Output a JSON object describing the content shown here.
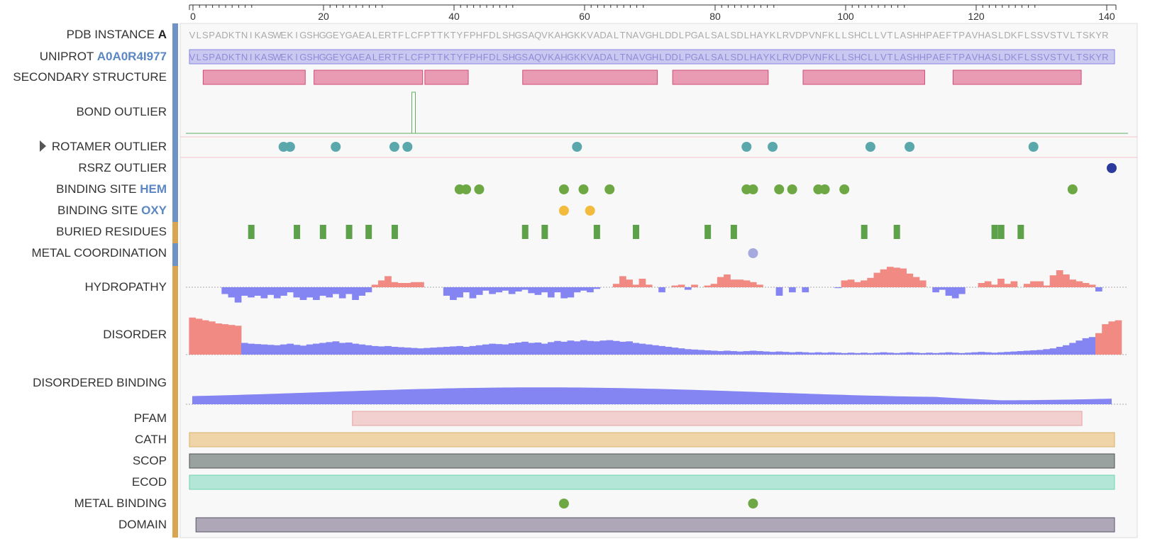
{
  "sequence": "VLSPADKTNIKASWEKIGSHGGEYGAEALERTFLCFPTTKTYFPHFDLSHGSAQVKAHGKKVADALTNAVGHLDDLPGALSALSDLHAYKLRVDPVNFKLLSHCLLVTLASHHPAEFTPAVHASLDKFLSSVSTVLTSKYR",
  "axis": {
    "ticks": [
      "0",
      "20",
      "40",
      "60",
      "80",
      "100",
      "120",
      "140"
    ]
  },
  "tracks": [
    {
      "key": "pdb",
      "prefix": "PDB INSTANCE ",
      "highlight": "A",
      "hl_color": "#222222",
      "type": "sequence"
    },
    {
      "key": "uniprot",
      "prefix": "UNIPROT ",
      "highlight": "A0A0R4I977",
      "hl_color": "#5b87c2",
      "type": "sequence-bar"
    },
    {
      "key": "ss",
      "prefix": "SECONDARY STRUCTURE",
      "type": "helices"
    },
    {
      "key": "bond",
      "prefix": "BOND OUTLIER",
      "type": "bond"
    },
    {
      "key": "rotamer",
      "prefix": "ROTAMER OUTLIER",
      "type": "points",
      "expandable": true
    },
    {
      "key": "rsrz",
      "prefix": "RSRZ OUTLIER",
      "type": "points"
    },
    {
      "key": "hem",
      "prefix": "BINDING SITE ",
      "highlight": "HEM",
      "hl_color": "#5b87c2",
      "type": "points"
    },
    {
      "key": "oxy",
      "prefix": "BINDING SITE ",
      "highlight": "OXY",
      "hl_color": "#5b87c2",
      "type": "points"
    },
    {
      "key": "buried",
      "prefix": "BURIED RESIDUES",
      "type": "ticks"
    },
    {
      "key": "metalcoord",
      "prefix": "METAL COORDINATION",
      "type": "points"
    },
    {
      "key": "hydro",
      "prefix": "HYDROPATHY",
      "type": "hydropathy"
    },
    {
      "key": "disorder",
      "prefix": "DISORDER",
      "type": "disorder"
    },
    {
      "key": "disbind",
      "prefix": "DISORDERED BINDING",
      "type": "area"
    },
    {
      "key": "pfam",
      "prefix": "PFAM",
      "type": "range"
    },
    {
      "key": "cath",
      "prefix": "CATH",
      "type": "range"
    },
    {
      "key": "scop",
      "prefix": "SCOP",
      "type": "range"
    },
    {
      "key": "ecod",
      "prefix": "ECOD",
      "type": "range"
    },
    {
      "key": "metalbind",
      "prefix": "METAL BINDING",
      "type": "points"
    },
    {
      "key": "domain",
      "prefix": "DOMAIN",
      "type": "range"
    }
  ],
  "features": {
    "helices": [
      [
        3,
        18
      ],
      [
        20,
        36
      ],
      [
        37,
        43
      ],
      [
        52,
        72
      ],
      [
        75,
        89
      ],
      [
        95,
        113
      ],
      [
        118,
        137
      ]
    ],
    "bond_outlier": [
      35
    ],
    "rotamer": [
      15,
      16,
      23,
      32,
      34,
      60,
      86,
      90,
      105,
      111,
      130
    ],
    "rsrz": [
      142
    ],
    "hem": [
      42,
      43,
      45,
      58,
      61,
      65,
      86,
      87,
      91,
      93,
      97,
      98,
      101,
      136
    ],
    "oxy": [
      58,
      62
    ],
    "buried": [
      10,
      17,
      21,
      25,
      28,
      32,
      52,
      55,
      63,
      69,
      80,
      84,
      104,
      109,
      124,
      125,
      128
    ],
    "metal_coordination": [
      87
    ],
    "metal_binding": [
      58,
      87
    ],
    "pfam": [
      26,
      137
    ],
    "cath": [
      1,
      142
    ],
    "scop": [
      1,
      142
    ],
    "ecod": [
      1,
      142
    ],
    "domain": [
      2,
      142
    ]
  },
  "hydropathy": [
    0,
    0,
    0,
    0,
    0,
    -0.8,
    -1.2,
    -1.8,
    -1.0,
    -1.2,
    -1.0,
    -1.3,
    -0.9,
    -1.3,
    -1.0,
    -0.6,
    -1.2,
    -1.5,
    -1.2,
    -1.5,
    -1.0,
    -1.2,
    -0.8,
    -1.3,
    -0.8,
    -1.5,
    -1.0,
    -0.6,
    0.3,
    0.8,
    1.3,
    0.6,
    0.5,
    0.5,
    0.6,
    0.6,
    0,
    0,
    0,
    -1.0,
    -1.5,
    -1.2,
    -0.6,
    -1.3,
    -0.9,
    -0.4,
    -0.8,
    -0.6,
    -0.4,
    -0.8,
    -0.5,
    -0.3,
    -0.7,
    -0.9,
    -0.6,
    -1.2,
    -0.6,
    -1.3,
    -1.2,
    -0.6,
    -0.4,
    -0.6,
    -0.2,
    0,
    0,
    0.4,
    1.3,
    0.9,
    0.3,
    1.0,
    0.3,
    0,
    -0.6,
    0,
    0.2,
    0.3,
    -0.3,
    0.3,
    0,
    0.2,
    0.4,
    1.2,
    1.5,
    0.9,
    0.9,
    0.8,
    0.6,
    0.3,
    0,
    0,
    -1.0,
    0,
    -0.6,
    0,
    -0.6,
    0,
    0,
    0,
    0,
    -0.1,
    0.8,
    0.9,
    0.6,
    0.8,
    1.1,
    1.7,
    2.1,
    2.4,
    2.3,
    2.2,
    1.6,
    1.2,
    0.8,
    0,
    -0.6,
    -0.3,
    -1.0,
    -1.3,
    -0.8,
    0,
    0,
    0.5,
    0.7,
    0.3,
    1.0,
    0.4,
    0.7,
    0,
    0.4,
    0.7,
    0.7,
    0.2,
    1.4,
    2.0,
    1.5,
    0.9,
    0.7,
    0.5,
    0.3,
    -0.5,
    0
  ],
  "disorder": [
    0.95,
    0.92,
    0.88,
    0.85,
    0.8,
    0.78,
    0.76,
    0.74,
    0.3,
    0.28,
    0.27,
    0.26,
    0.25,
    0.24,
    0.26,
    0.28,
    0.25,
    0.23,
    0.26,
    0.28,
    0.3,
    0.32,
    0.34,
    0.3,
    0.31,
    0.28,
    0.26,
    0.24,
    0.22,
    0.21,
    0.22,
    0.2,
    0.19,
    0.18,
    0.17,
    0.16,
    0.17,
    0.18,
    0.19,
    0.2,
    0.21,
    0.22,
    0.2,
    0.22,
    0.24,
    0.26,
    0.28,
    0.27,
    0.26,
    0.29,
    0.31,
    0.33,
    0.3,
    0.31,
    0.28,
    0.32,
    0.35,
    0.33,
    0.36,
    0.34,
    0.37,
    0.35,
    0.34,
    0.36,
    0.37,
    0.35,
    0.33,
    0.34,
    0.3,
    0.28,
    0.26,
    0.24,
    0.22,
    0.2,
    0.18,
    0.16,
    0.14,
    0.13,
    0.12,
    0.11,
    0.1,
    0.09,
    0.1,
    0.09,
    0.08,
    0.09,
    0.1,
    0.09,
    0.08,
    0.07,
    0.08,
    0.07,
    0.06,
    0.07,
    0.06,
    0.05,
    0.06,
    0.05,
    0.06,
    0.05,
    0.04,
    0.05,
    0.04,
    0.05,
    0.04,
    0.05,
    0.06,
    0.05,
    0.04,
    0.05,
    0.06,
    0.05,
    0.04,
    0.05,
    0.04,
    0.05,
    0.06,
    0.05,
    0.04,
    0.05,
    0.06,
    0.07,
    0.06,
    0.05,
    0.06,
    0.07,
    0.08,
    0.09,
    0.1,
    0.11,
    0.12,
    0.14,
    0.16,
    0.2,
    0.24,
    0.3,
    0.36,
    0.42,
    0.45,
    0.55,
    0.78,
    0.85,
    0.88
  ],
  "colors": {
    "helix_fill": "#e99bb4",
    "helix_stroke": "#d04a77",
    "rotamer": "#5aa8ac",
    "rsrz": "#2b3a9c",
    "hem": "#6ea845",
    "oxy": "#f2bb3e",
    "buried": "#5da14a",
    "metal_coord": "#a6a9de",
    "metal_bind": "#6ea845",
    "hydro_pos": "#f08a83",
    "hydro_neg": "#8484f2",
    "disorder_pos": "#f08a83",
    "disorder_neg": "#8484f2",
    "disbind": "#8484f2",
    "pfam_fill": "#f2d0d0",
    "pfam_stroke": "#e6a2a2",
    "cath_fill": "#efd4a8",
    "cath_stroke": "#dcae69",
    "scop_fill": "#9aa2a0",
    "scop_stroke": "#4f5652",
    "ecod_fill": "#b3e6d6",
    "ecod_stroke": "#6fd4b3",
    "domain_fill": "#aea7b8",
    "domain_stroke": "#5a5566",
    "uniprot_fill": "#c9c8f0",
    "uniprot_stroke": "#8a86e0",
    "bond": "#5fb05f",
    "side_blue": "#6e93c6",
    "side_orange": "#d9a553"
  }
}
